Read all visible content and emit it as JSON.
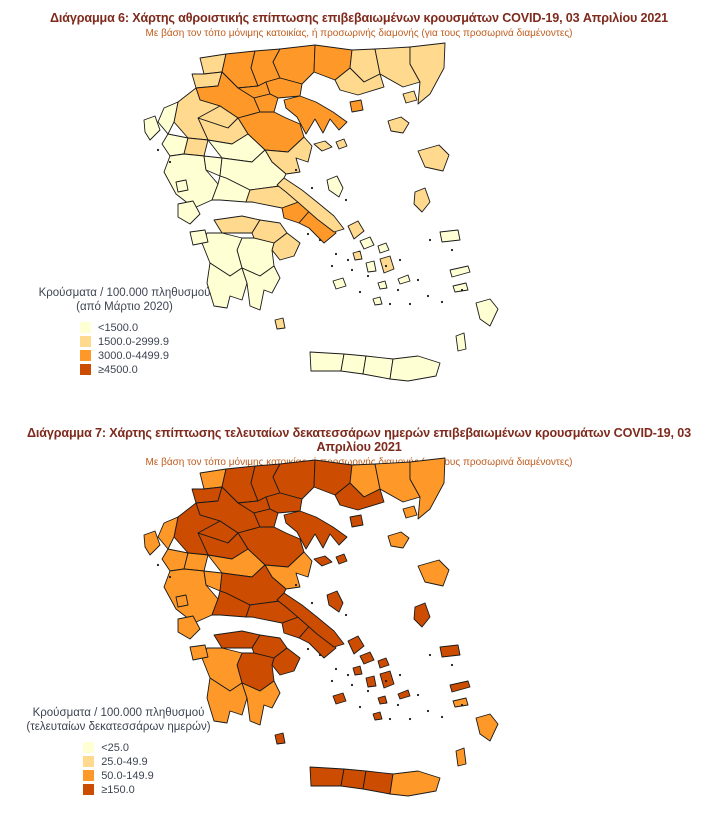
{
  "colors": {
    "cat1": "#FFFFD4",
    "cat2": "#FED98E",
    "cat3": "#FE9929",
    "cat4": "#CC4C02",
    "map_border": "#1A1A1A",
    "title": "#7E2A1C",
    "subtitle": "#BE5B1C",
    "legend_text": "#3D4452",
    "background": "#FFFFFF"
  },
  "diagram1": {
    "title": "Διάγραμμα 6: Χάρτης αθροιστικής επίπτωσης επιβεβαιωμένων κρουσμάτων COVID-19, 03 Απριλίου 2021",
    "subtitle": "Με βάση τον τόπο μόνιμης κατοικίας, ή προσωρινής διαμονής (για τους προσωρινά διαμένοντες)",
    "legend": {
      "title_line1": "Κρούσματα / 100.000 πληθυσμού",
      "title_line2": "(από Μάρτιο 2020)",
      "categories": [
        {
          "label": "<1500.0",
          "color_key": "cat1"
        },
        {
          "label": "1500.0-2999.9",
          "color_key": "cat2"
        },
        {
          "label": "3000.0-4499.9",
          "color_key": "cat3"
        },
        {
          "label": "≥4500.0",
          "color_key": "cat4"
        }
      ]
    }
  },
  "diagram2": {
    "title": "Διάγραμμα 7: Χάρτης επίπτωσης τελευταίων δεκατεσσάρων ημερών επιβεβαιωμένων κρουσμάτων COVID-19, 03 Απριλίου 2021",
    "subtitle": "Με βάση τον τόπο μόνιμης κατοικίας, ή προσωρινής διαμονής (για τους προσωρινά διαμένοντες)",
    "legend": {
      "title_line1": "Κρούσματα / 100.000 πληθυσμού",
      "title_line2": "(τελευταίων δεκατεσσάρων ημερών)",
      "categories": [
        {
          "label": "<25.0",
          "color_key": "cat1"
        },
        {
          "label": "25.0-49.9",
          "color_key": "cat2"
        },
        {
          "label": "50.0-149.9",
          "color_key": "cat3"
        },
        {
          "label": "≥150.0",
          "color_key": "cat4"
        }
      ]
    }
  },
  "chart_data": [
    {
      "type": "choropleth_map",
      "title": "Διάγραμμα 6: Χάρτης αθροιστικής επίπτωσης επιβεβαιωμένων κρουσμάτων COVID-19, 03 Απριλίου 2021",
      "legend_title": "Κρούσματα / 100.000 πληθυσμού (από Μάρτιο 2020)",
      "categories": [
        "<1500.0",
        "1500.0-2999.9",
        "3000.0-4499.9",
        "≥4500.0"
      ],
      "category_colors": [
        "#FFFFD4",
        "#FED98E",
        "#FE9929",
        "#CC4C02"
      ],
      "region_categories": {
        "evros": 2,
        "rhodopi": 2,
        "xanthi": 2,
        "drama": 3,
        "kavala": 2,
        "thasos": 3,
        "samothraki": 2,
        "serres": 3,
        "kilkis": 3,
        "thessaloniki": 3,
        "chalkidiki": 3,
        "pella": 3,
        "imathia": 3,
        "pieria": 3,
        "florina": 2,
        "kastoria": 2,
        "kozani": 3,
        "grevena": 2,
        "ioannina": 2,
        "thesprotia": 1,
        "preveza": 1,
        "arta": 2,
        "trikala": 2,
        "larissa": 3,
        "karditsa": 1,
        "magnisia": 2,
        "fthiotida": 1,
        "evrytania": 1,
        "aitoloakarnania": 1,
        "fokida": 1,
        "viotia": 2,
        "evia": 2,
        "attiki_west": 3,
        "attiki_east": 3,
        "achaia": 2,
        "korinthia": 2,
        "argolida": 2,
        "arkadia": 1,
        "ilia": 1,
        "messinia": 1,
        "lakonia": 1,
        "kythira": 2,
        "chania": 1,
        "rethymno": 1,
        "irakleio": 1,
        "lasithi": 1,
        "kerkyra": 1,
        "lefkada": 1,
        "kefalonia": 1,
        "zakynthos": 1,
        "sporades": 2,
        "alonissos": 2,
        "skyros": 1,
        "limnos": 2,
        "lesvos": 2,
        "chios": 2,
        "samos": 1,
        "ikaria": 1,
        "andros": 2,
        "tinos": 1,
        "mykonos": 1,
        "syros": 2,
        "paros": 1,
        "naxos": 2,
        "milos": 1,
        "ios": 1,
        "santorini": 1,
        "amorgos": 1,
        "kos": 1,
        "rodos": 1,
        "karpathos": 1
      }
    },
    {
      "type": "choropleth_map",
      "title": "Διάγραμμα 7: Χάρτης επίπτωσης τελευταίων δεκατεσσάρων ημερών επιβεβαιωμένων κρουσμάτων COVID-19, 03 Απριλίου 2021",
      "legend_title": "Κρούσματα / 100.000 πληθυσμού (τελευταίων δεκατεσσάρων ημερών)",
      "categories": [
        "<25.0",
        "25.0-49.9",
        "50.0-149.9",
        "≥150.0"
      ],
      "category_colors": [
        "#FFFFD4",
        "#FED98E",
        "#FE9929",
        "#CC4C02"
      ],
      "region_categories": {
        "evros": 3,
        "rhodopi": 3,
        "xanthi": 3,
        "drama": 4,
        "kavala": 4,
        "thasos": 4,
        "samothraki": 3,
        "serres": 4,
        "kilkis": 4,
        "thessaloniki": 4,
        "chalkidiki": 4,
        "pella": 4,
        "imathia": 4,
        "pieria": 4,
        "florina": 3,
        "kastoria": 4,
        "kozani": 4,
        "grevena": 4,
        "ioannina": 4,
        "thesprotia": 3,
        "preveza": 3,
        "arta": 3,
        "trikala": 4,
        "larissa": 4,
        "karditsa": 3,
        "magnisia": 3,
        "fthiotida": 4,
        "evrytania": 3,
        "aitoloakarnania": 3,
        "fokida": 4,
        "viotia": 4,
        "evia": 4,
        "attiki_west": 4,
        "attiki_east": 4,
        "achaia": 4,
        "korinthia": 4,
        "argolida": 4,
        "arkadia": 4,
        "ilia": 3,
        "messinia": 3,
        "lakonia": 3,
        "kythira": 4,
        "chania": 4,
        "rethymno": 4,
        "irakleio": 4,
        "lasithi": 3,
        "kerkyra": 3,
        "lefkada": 3,
        "kefalonia": 3,
        "zakynthos": 3,
        "sporades": 4,
        "alonissos": 4,
        "skyros": 4,
        "limnos": 3,
        "lesvos": 3,
        "chios": 4,
        "samos": 4,
        "ikaria": 4,
        "andros": 4,
        "tinos": 4,
        "mykonos": 4,
        "syros": 4,
        "paros": 4,
        "naxos": 4,
        "milos": 4,
        "ios": 4,
        "santorini": 4,
        "amorgos": 4,
        "kos": 3,
        "rodos": 3,
        "karpathos": 3
      }
    }
  ]
}
